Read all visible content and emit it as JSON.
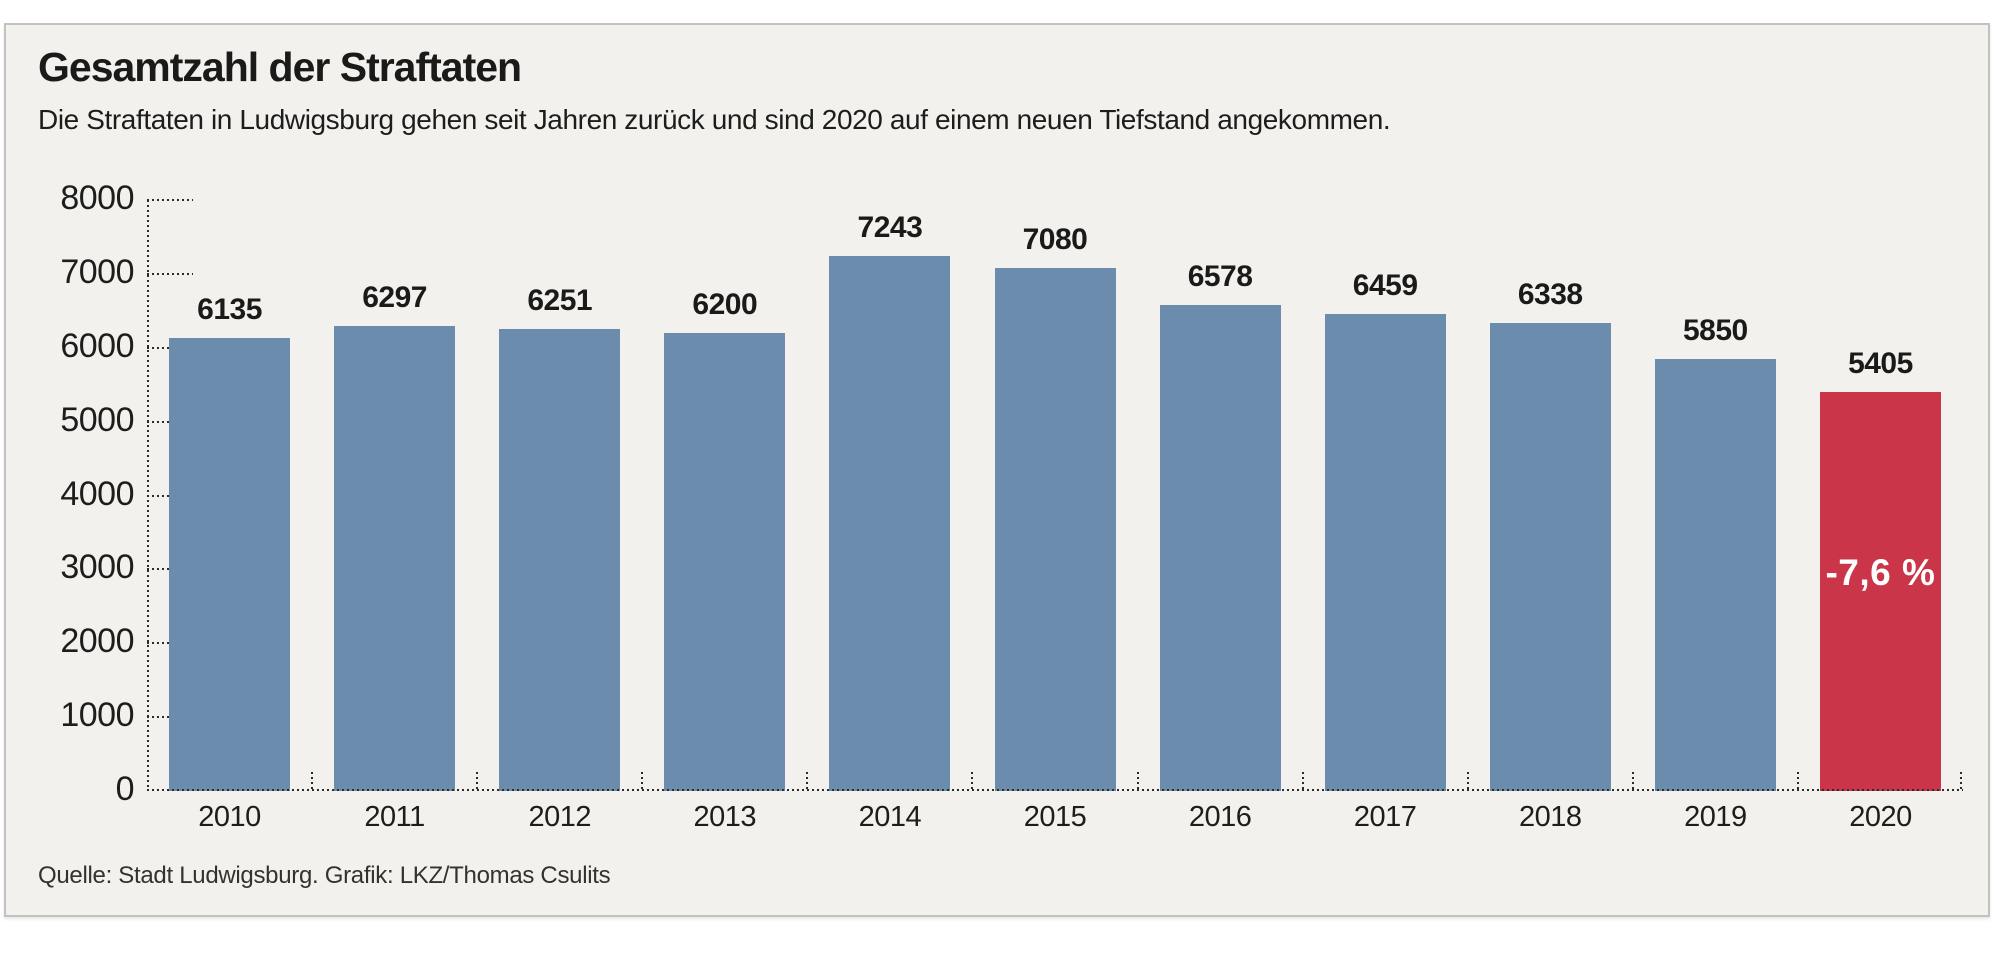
{
  "header": {
    "title": "Gesamtzahl der Straftaten",
    "subtitle": "Die Straftaten in Ludwigsburg gehen seit Jahren zurück und sind 2020 auf einem neuen Tiefstand angekommen."
  },
  "footer": {
    "source": "Quelle: Stadt Ludwigsburg. Grafik: LKZ/Thomas Csulits"
  },
  "chart_data": {
    "type": "bar",
    "title": "Gesamtzahl der Straftaten",
    "categories": [
      "2010",
      "2011",
      "2012",
      "2013",
      "2014",
      "2015",
      "2016",
      "2017",
      "2018",
      "2019",
      "2020"
    ],
    "values": [
      6135,
      6297,
      6251,
      6200,
      7243,
      7080,
      6578,
      6459,
      6338,
      5850,
      5405
    ],
    "data_labels": [
      "6135",
      "6297",
      "6251",
      "6200",
      "7243",
      "7080",
      "6578",
      "6459",
      "6338",
      "5850",
      "5405"
    ],
    "highlight": {
      "index": 10,
      "label": "-7,6 %",
      "color": "#ca3549"
    },
    "bar_color": "#6b8cac",
    "xlabel": "",
    "ylabel": "",
    "ylim": [
      0,
      8000
    ],
    "yticks": [
      0,
      1000,
      2000,
      3000,
      4000,
      5000,
      6000,
      7000,
      8000
    ],
    "grid": "dotted y-axis ticks and dotted baseline",
    "legend": "none",
    "background": "#f2f1ee"
  }
}
